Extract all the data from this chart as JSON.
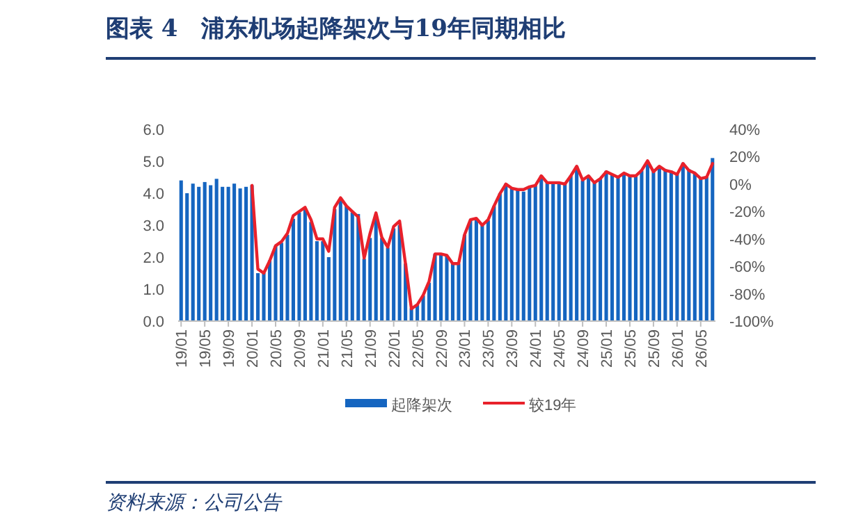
{
  "chart_data": {
    "type": "bar",
    "title": "图表 4　浦东机场起降架次与19年同期相比",
    "categories": [
      "19/01",
      null,
      null,
      null,
      "19/05",
      null,
      null,
      null,
      "19/09",
      null,
      null,
      null,
      "20/01",
      null,
      null,
      null,
      "20/05",
      null,
      null,
      null,
      "20/09",
      null,
      null,
      null,
      "21/01",
      null,
      null,
      null,
      "21/05",
      null,
      null,
      null,
      "21/09",
      null,
      null,
      null,
      "22/01",
      null,
      null,
      null,
      "22/05",
      null,
      null,
      null,
      "22/09",
      null,
      null,
      null,
      "23/01",
      null,
      null,
      null,
      "23/05",
      null,
      null,
      null,
      "23/09",
      null,
      null,
      null,
      "24/01",
      null,
      null,
      null,
      "24/05",
      null,
      null,
      null,
      "24/09",
      null,
      null,
      null,
      "25/01",
      null,
      null,
      null,
      "25/05",
      null,
      null,
      null,
      "25/09",
      null,
      null,
      null,
      "26/01",
      null,
      null,
      null,
      "26/05",
      null,
      null
    ],
    "series": [
      {
        "name": "起降架次",
        "color": "#1565c0",
        "values": [
          4.4,
          4.0,
          4.3,
          4.2,
          4.35,
          4.25,
          4.45,
          4.2,
          4.2,
          4.3,
          4.15,
          4.2,
          4.25,
          1.5,
          1.5,
          1.9,
          2.35,
          2.45,
          2.7,
          3.2,
          3.4,
          3.5,
          3.1,
          2.5,
          2.5,
          2.0,
          3.5,
          3.8,
          3.6,
          3.4,
          3.35,
          1.95,
          2.6,
          3.3,
          2.6,
          2.3,
          2.9,
          3.0,
          1.8,
          0.4,
          0.5,
          0.8,
          1.2,
          2.1,
          2.1,
          2.05,
          1.8,
          1.8,
          2.7,
          3.15,
          3.2,
          3.0,
          3.15,
          3.6,
          4.0,
          4.3,
          4.15,
          4.1,
          4.05,
          4.2,
          4.25,
          4.55,
          4.35,
          4.35,
          4.3,
          4.3,
          4.55,
          4.85,
          4.4,
          4.55,
          4.35,
          4.45,
          4.7,
          4.6,
          4.5,
          4.65,
          4.55,
          4.55,
          4.7,
          5.0,
          4.7,
          4.85,
          4.75,
          4.7,
          4.6,
          4.95,
          4.75,
          4.65,
          4.45,
          4.5,
          5.1
        ]
      },
      {
        "name": "较19年",
        "type": "line",
        "axis": "y2",
        "color": "#e8212b",
        "values": [
          null,
          null,
          null,
          null,
          null,
          null,
          null,
          null,
          null,
          null,
          null,
          null,
          -1,
          -62,
          -65,
          -56,
          -45,
          -42,
          -36,
          -23,
          -20,
          -17,
          -26,
          -40,
          -40,
          -49,
          -17,
          -10,
          -16,
          -20,
          -24,
          -54,
          -36,
          -21,
          -39,
          -46,
          -31,
          -27,
          -58,
          -91,
          -88,
          -81,
          -71,
          -51,
          -51,
          -52,
          -58,
          -58,
          -37,
          -26,
          -25,
          -30,
          -26,
          -16,
          -7,
          0,
          -3,
          -4,
          -4,
          -2,
          -1,
          6,
          1,
          1,
          1,
          0,
          6,
          13,
          3,
          6,
          1,
          4,
          9,
          7,
          5,
          8,
          6,
          6,
          10,
          17,
          9,
          13,
          10,
          9,
          7,
          15,
          10,
          8,
          4,
          5,
          15
        ]
      }
    ],
    "ylim": [
      0,
      6
    ],
    "yticks": [
      {
        "value": 0,
        "label": "0.0"
      },
      {
        "value": 1,
        "label": "1.0"
      },
      {
        "value": 2,
        "label": "2.0"
      },
      {
        "value": 3,
        "label": "3.0"
      },
      {
        "value": 4,
        "label": "4.0"
      },
      {
        "value": 5,
        "label": "5.0"
      },
      {
        "value": 6,
        "label": "6.0"
      }
    ],
    "y2lim": [
      -100,
      40
    ],
    "y2ticks": [
      {
        "value": -100,
        "label": "-100%"
      },
      {
        "value": -80,
        "label": "-80%"
      },
      {
        "value": -60,
        "label": "-60%"
      },
      {
        "value": -40,
        "label": "-40%"
      },
      {
        "value": -20,
        "label": "-20%"
      },
      {
        "value": 0,
        "label": "0%"
      },
      {
        "value": 20,
        "label": "20%"
      },
      {
        "value": 40,
        "label": "40%"
      }
    ],
    "legend": "bottom",
    "annotations": [
      "资料来源：公司公告"
    ]
  }
}
